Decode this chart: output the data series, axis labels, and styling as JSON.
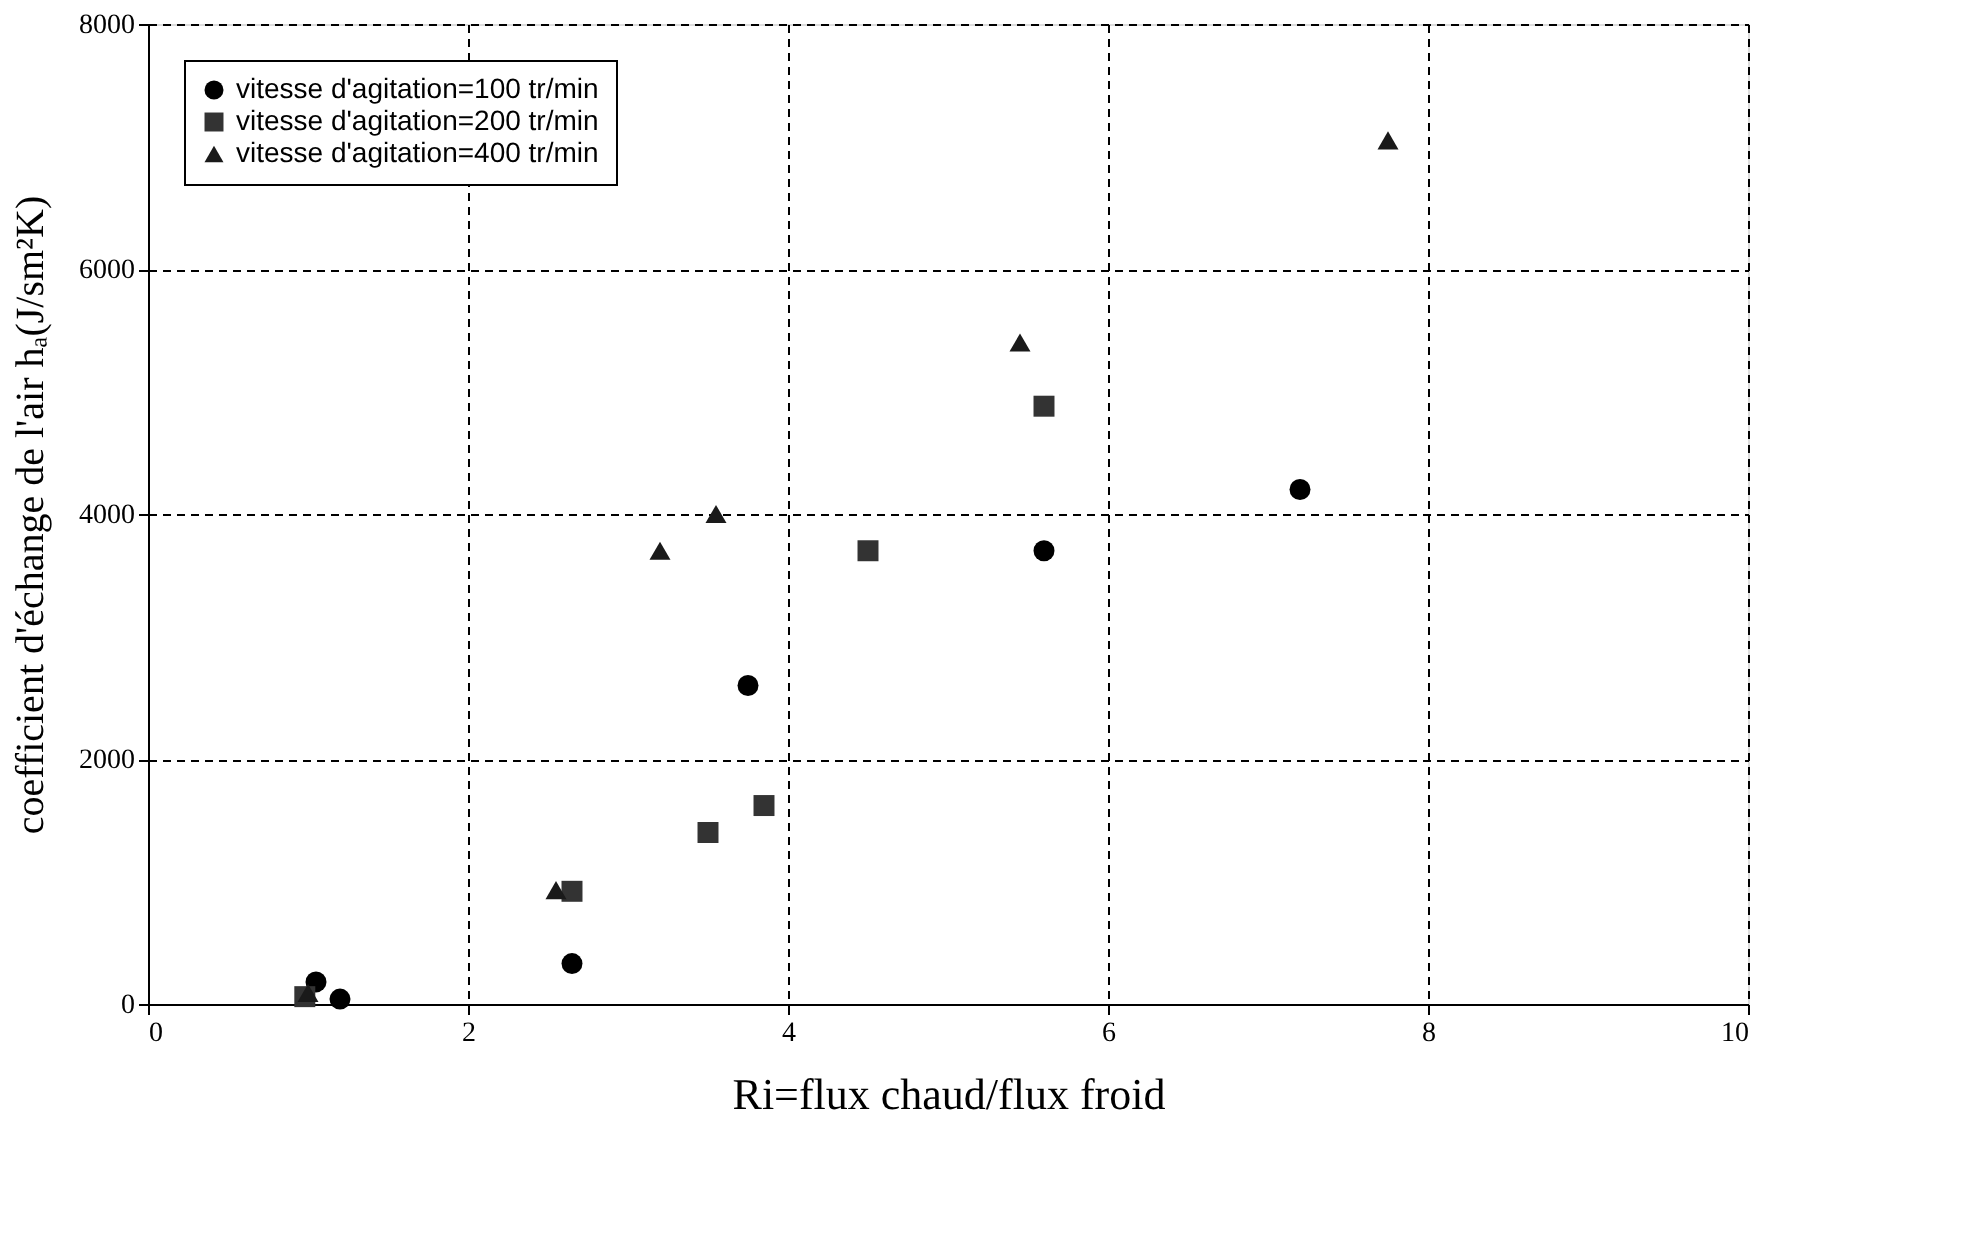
{
  "chart_data": {
    "type": "scatter",
    "xlabel": "Ri=flux chaud/flux froid",
    "ylabel": "coefficient d'échange de l'air hₐ(J/sm²K)",
    "xlim": [
      0,
      10
    ],
    "xticks": [
      0,
      2,
      4,
      6,
      8,
      10
    ],
    "ylim": [
      0,
      8000
    ],
    "yticks": [
      0,
      2000,
      4000,
      6000,
      8000
    ],
    "grid": true,
    "legend": "top left",
    "series": [
      {
        "name": "vitesse d'agitation=100 tr/min",
        "color": "#000000",
        "marker": "circle",
        "x": [
          1.05,
          1.2,
          2.65,
          3.75,
          5.6,
          7.2
        ],
        "values": [
          180,
          40,
          330,
          2600,
          3700,
          4200
        ]
      },
      {
        "name": "vitesse d'agitation=200 tr/min",
        "color": "#333333",
        "marker": "square",
        "x": [
          0.98,
          2.65,
          3.5,
          3.85,
          4.5,
          5.6
        ],
        "values": [
          60,
          920,
          1400,
          1620,
          3700,
          4880
        ]
      },
      {
        "name": "vitesse d'agitation=400 tr/min",
        "color": "#1a1a1a",
        "marker": "triangle",
        "x": [
          1.0,
          2.55,
          3.2,
          3.55,
          5.45,
          7.75
        ],
        "values": [
          90,
          930,
          3700,
          4000,
          5400,
          7050
        ]
      }
    ]
  }
}
